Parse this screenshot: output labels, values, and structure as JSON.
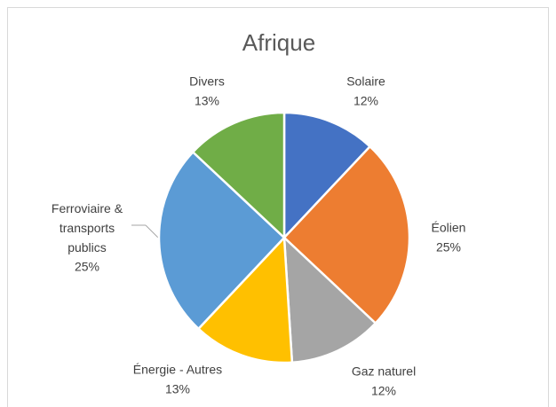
{
  "chart_data": {
    "type": "pie",
    "title": "Afrique",
    "categories": [
      "Solaire",
      "Éolien",
      "Gaz naturel",
      "Énergie - Autres",
      "Ferroviaire & transports publics",
      "Divers"
    ],
    "values": [
      12,
      25,
      12,
      13,
      25,
      13
    ],
    "value_labels": [
      "12%",
      "25%",
      "12%",
      "13%",
      "25%",
      "13%"
    ],
    "colors": [
      "#4472c4",
      "#ed7d31",
      "#a5a5a5",
      "#ffc000",
      "#5b9bd5",
      "#70ad47"
    ]
  }
}
